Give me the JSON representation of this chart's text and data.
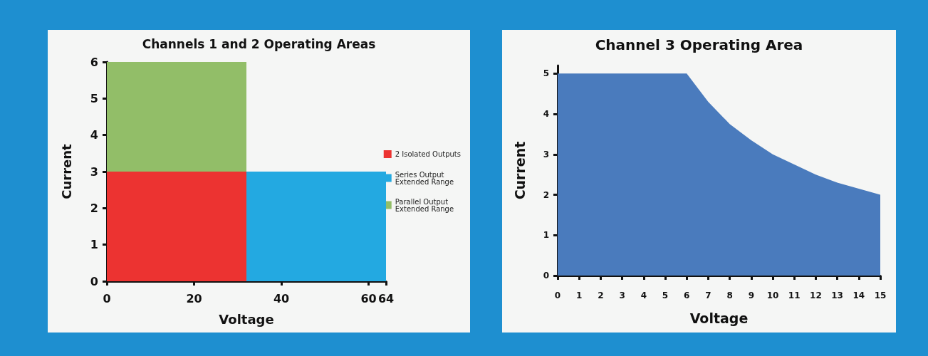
{
  "chart_data": [
    {
      "type": "area",
      "title": "Channels 1 and 2 Operating Areas",
      "xlabel": "Voltage",
      "ylabel": "Current",
      "legend": "right",
      "series": [
        {
          "name": "2 Isolated Outputs",
          "color": "#ec3331",
          "x": [
            0,
            32
          ],
          "values": [
            3,
            3
          ]
        },
        {
          "name": "Series Output Extended Range",
          "color": "#23a9e1",
          "x": [
            32,
            64
          ],
          "values": [
            3,
            3
          ]
        },
        {
          "name": "Parallel Output Extended Range",
          "color": "#92be68",
          "x": [
            0,
            32
          ],
          "values": [
            6,
            6
          ]
        }
      ],
      "xlim": [
        0,
        64
      ],
      "xticks": [
        0,
        20,
        40,
        60,
        64
      ],
      "ylim": [
        0,
        6
      ],
      "yticks": [
        0,
        1,
        2,
        3,
        4,
        5,
        6
      ]
    },
    {
      "type": "area",
      "title": "Channel 3 Operating Area",
      "xlabel": "Voltage",
      "ylabel": "Current",
      "series": [
        {
          "color": "#4a7bbd",
          "x": [
            0,
            6,
            7,
            8,
            9,
            10,
            11,
            12,
            13,
            14,
            15
          ],
          "values": [
            5,
            5,
            4.3,
            3.75,
            3.35,
            3,
            2.75,
            2.5,
            2.3,
            2.15,
            2
          ]
        }
      ],
      "xlim": [
        0,
        15
      ],
      "xticks": [
        0,
        1,
        2,
        3,
        4,
        5,
        6,
        7,
        8,
        9,
        10,
        11,
        12,
        13,
        14,
        15
      ],
      "ylim": [
        0,
        5.2
      ],
      "yticks": [
        0,
        1,
        2,
        3,
        4,
        5
      ]
    }
  ]
}
